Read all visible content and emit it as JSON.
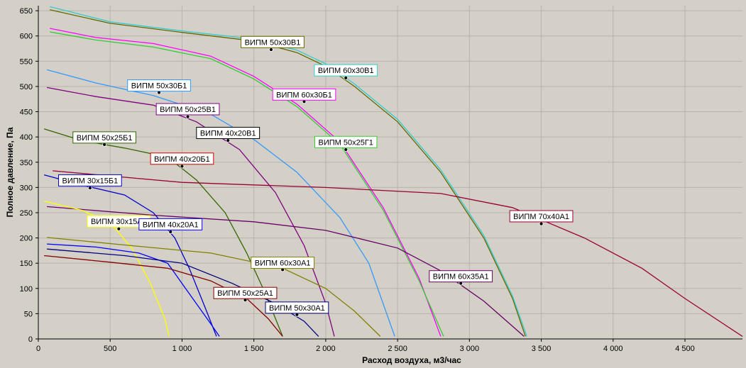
{
  "chart_data": {
    "type": "line",
    "xlabel": "Расход воздуха, м3/час",
    "ylabel": "Полное давление, Па",
    "xlim": [
      0,
      4900
    ],
    "ylim": [
      0,
      660
    ],
    "grid": true,
    "x_ticks": [
      {
        "value": 0,
        "label": "0"
      },
      {
        "value": 500,
        "label": "500"
      },
      {
        "value": 1000,
        "label": "1 000"
      },
      {
        "value": 1500,
        "label": "1 500"
      },
      {
        "value": 2000,
        "label": "2 000"
      },
      {
        "value": 2500,
        "label": "2 500"
      },
      {
        "value": 3000,
        "label": "3 000"
      },
      {
        "value": 3500,
        "label": "3 500"
      },
      {
        "value": 4000,
        "label": "4 000"
      },
      {
        "value": 4500,
        "label": "4 500"
      }
    ],
    "y_ticks": [
      {
        "value": 0,
        "label": "0"
      },
      {
        "value": 50,
        "label": "50"
      },
      {
        "value": 100,
        "label": "100"
      },
      {
        "value": 150,
        "label": "150"
      },
      {
        "value": 200,
        "label": "200"
      },
      {
        "value": 250,
        "label": "250"
      },
      {
        "value": 300,
        "label": "300"
      },
      {
        "value": 350,
        "label": "350"
      },
      {
        "value": 400,
        "label": "400"
      },
      {
        "value": 450,
        "label": "450"
      },
      {
        "value": 500,
        "label": "500"
      },
      {
        "value": 550,
        "label": "550"
      },
      {
        "value": 600,
        "label": "600"
      },
      {
        "value": 650,
        "label": "650"
      }
    ],
    "series": [
      {
        "name": "ВИПМ 50x30В1",
        "color": "#666600",
        "points": [
          [
            80,
            652
          ],
          [
            500,
            625
          ],
          [
            1000,
            607
          ],
          [
            1500,
            590
          ],
          [
            1800,
            567
          ],
          [
            2000,
            540
          ],
          [
            2200,
            500
          ],
          [
            2500,
            430
          ],
          [
            2800,
            330
          ],
          [
            3100,
            200
          ],
          [
            3300,
            80
          ],
          [
            3390,
            5
          ]
        ],
        "marker": [
          1620,
          573
        ],
        "label_at": [
          1630,
          588
        ]
      },
      {
        "name": "ВИПМ 60x30В1",
        "color": "#33cccc",
        "points": [
          [
            80,
            658
          ],
          [
            500,
            628
          ],
          [
            1000,
            610
          ],
          [
            1500,
            594
          ],
          [
            1800,
            572
          ],
          [
            2000,
            545
          ],
          [
            2200,
            505
          ],
          [
            2500,
            435
          ],
          [
            2800,
            335
          ],
          [
            3100,
            205
          ],
          [
            3300,
            85
          ],
          [
            3400,
            5
          ]
        ],
        "marker": [
          2140,
          517
        ],
        "label_at": [
          2140,
          532
        ]
      },
      {
        "name": "ВИПМ 60x30Б1",
        "color": "#ff00ff",
        "points": [
          [
            80,
            615
          ],
          [
            400,
            597
          ],
          [
            800,
            585
          ],
          [
            1200,
            560
          ],
          [
            1500,
            520
          ],
          [
            1800,
            465
          ],
          [
            2100,
            390
          ],
          [
            2400,
            260
          ],
          [
            2650,
            120
          ],
          [
            2800,
            5
          ]
        ],
        "marker": [
          1850,
          470
        ],
        "label_at": [
          1850,
          484
        ]
      },
      {
        "name": "ВИПМ 50x25Г1",
        "color": "#33cc33",
        "points": [
          [
            80,
            608
          ],
          [
            400,
            592
          ],
          [
            800,
            578
          ],
          [
            1200,
            555
          ],
          [
            1500,
            515
          ],
          [
            1800,
            460
          ],
          [
            2100,
            385
          ],
          [
            2400,
            255
          ],
          [
            2650,
            115
          ],
          [
            2820,
            5
          ]
        ],
        "marker": [
          2140,
          375
        ],
        "label_at": [
          2140,
          390
        ]
      },
      {
        "name": "ВИПМ 50x30Б1",
        "color": "#3399ff",
        "points": [
          [
            60,
            533
          ],
          [
            400,
            507
          ],
          [
            800,
            482
          ],
          [
            1200,
            445
          ],
          [
            1500,
            395
          ],
          [
            1800,
            330
          ],
          [
            2100,
            240
          ],
          [
            2300,
            150
          ],
          [
            2480,
            5
          ]
        ],
        "marker": [
          840,
          488
        ],
        "label_at": [
          840,
          502
        ]
      },
      {
        "name": "ВИПМ 50x25В1",
        "color": "#800080",
        "points": [
          [
            60,
            498
          ],
          [
            400,
            480
          ],
          [
            800,
            463
          ],
          [
            1100,
            430
          ],
          [
            1400,
            375
          ],
          [
            1650,
            290
          ],
          [
            1850,
            185
          ],
          [
            2000,
            70
          ],
          [
            2060,
            5
          ]
        ],
        "marker": [
          1040,
          440
        ],
        "label_at": [
          1040,
          455
        ]
      },
      {
        "name": "ВИПМ 40x20В1",
        "color": "#ffffff",
        "hide_line": true,
        "points": [],
        "marker": [
          1320,
          393
        ],
        "label_at": [
          1320,
          408
        ]
      },
      {
        "name": "ВИПМ 50x25Б1",
        "color": "#336600",
        "points": [
          [
            40,
            416
          ],
          [
            300,
            393
          ],
          [
            600,
            378
          ],
          [
            900,
            360
          ],
          [
            1100,
            315
          ],
          [
            1300,
            250
          ],
          [
            1450,
            170
          ],
          [
            1580,
            90
          ],
          [
            1700,
            5
          ]
        ],
        "marker": [
          460,
          385
        ],
        "label_at": [
          460,
          399
        ]
      },
      {
        "name": "ВИПМ 40x20Б1",
        "color": "#cc0000",
        "label_color": "#cc0000",
        "hide_line": true,
        "points": [],
        "marker": [
          1000,
          342
        ],
        "label_at": [
          1000,
          357
        ]
      },
      {
        "name": "ВИПМ 30x15Б1",
        "color": "#0000cc",
        "points": [
          [
            40,
            325
          ],
          [
            300,
            305
          ],
          [
            600,
            285
          ],
          [
            800,
            250
          ],
          [
            950,
            200
          ],
          [
            1050,
            140
          ],
          [
            1150,
            70
          ],
          [
            1240,
            5
          ]
        ],
        "marker": [
          360,
          299
        ],
        "label_at": [
          360,
          314
        ]
      },
      {
        "name": "ВИПМ 70x40А1",
        "color": "#990033",
        "points": [
          [
            100,
            333
          ],
          [
            1000,
            310
          ],
          [
            2000,
            300
          ],
          [
            2800,
            288
          ],
          [
            3300,
            260
          ],
          [
            3800,
            200
          ],
          [
            4200,
            140
          ],
          [
            4500,
            80
          ],
          [
            4900,
            5
          ]
        ],
        "marker": [
          3500,
          228
        ],
        "label_at": [
          3500,
          243
        ]
      },
      {
        "name": "ВИПМ 60x35А1",
        "color": "#660066",
        "points": [
          [
            60,
            262
          ],
          [
            800,
            245
          ],
          [
            1500,
            232
          ],
          [
            2000,
            215
          ],
          [
            2500,
            180
          ],
          [
            2800,
            135
          ],
          [
            3100,
            75
          ],
          [
            3380,
            5
          ]
        ],
        "marker": [
          2940,
          110
        ],
        "label_at": [
          2940,
          124
        ]
      },
      {
        "name": "ВИПМ 30x15А1",
        "color": "#ffff00",
        "points": [
          [
            40,
            273
          ],
          [
            300,
            255
          ],
          [
            500,
            230
          ],
          [
            650,
            180
          ],
          [
            780,
            110
          ],
          [
            880,
            40
          ],
          [
            910,
            5
          ]
        ],
        "marker": [
          560,
          218
        ],
        "label_at": [
          560,
          233
        ]
      },
      {
        "name": "ВИПМ 40x20А1",
        "color": "#0000ff",
        "points": [
          [
            60,
            188
          ],
          [
            400,
            182
          ],
          [
            700,
            170
          ],
          [
            900,
            150
          ],
          [
            1000,
            110
          ],
          [
            1100,
            70
          ],
          [
            1200,
            30
          ],
          [
            1260,
            5
          ]
        ],
        "marker": [
          920,
          212
        ],
        "label_at": [
          920,
          227
        ]
      },
      {
        "name": "ВИПМ 60x30А1",
        "color": "#808000",
        "points": [
          [
            60,
            201
          ],
          [
            600,
            186
          ],
          [
            1200,
            170
          ],
          [
            1700,
            140
          ],
          [
            2000,
            100
          ],
          [
            2200,
            55
          ],
          [
            2380,
            5
          ]
        ],
        "marker": [
          1700,
          137
        ],
        "label_at": [
          1700,
          151
        ]
      },
      {
        "name": "ВИПМ 50x25А1",
        "color": "#800000",
        "points": [
          [
            40,
            165
          ],
          [
            500,
            152
          ],
          [
            900,
            140
          ],
          [
            1200,
            115
          ],
          [
            1450,
            80
          ],
          [
            1600,
            40
          ],
          [
            1700,
            5
          ]
        ],
        "marker": [
          1440,
          77
        ],
        "label_at": [
          1440,
          91
        ]
      },
      {
        "name": "ВИПМ 50x30А1",
        "color": "#000080",
        "points": [
          [
            60,
            178
          ],
          [
            600,
            165
          ],
          [
            1000,
            150
          ],
          [
            1350,
            110
          ],
          [
            1650,
            70
          ],
          [
            1850,
            35
          ],
          [
            1950,
            5
          ]
        ],
        "marker": [
          1800,
          48
        ],
        "label_at": [
          1800,
          62
        ]
      }
    ]
  }
}
